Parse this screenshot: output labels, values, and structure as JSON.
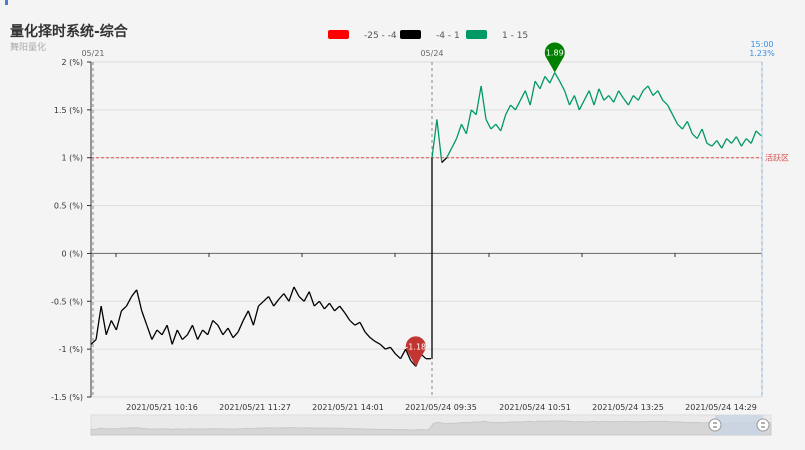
{
  "header": {
    "title": "量化择时系统-综合",
    "subtitle": "舞阳量化"
  },
  "chart_data": {
    "type": "line",
    "title": "量化择时系统-综合",
    "subtitle": "舞阳量化",
    "ylabel": "",
    "ylim": [
      -1.5,
      2
    ],
    "yticks": [
      "2 (%)",
      "1.5 (%)",
      "1 (%)",
      "0.5 (%)",
      "0 (%)",
      "-0.5 (%)",
      "-1 (%)",
      "-1.5 (%)"
    ],
    "ytick_values": [
      2,
      1.5,
      1,
      0.5,
      0,
      -0.5,
      -1,
      -1.5
    ],
    "xticks": [
      "2021/05/21 10:16",
      "2021/05/21 11:27",
      "2021/05/21 14:01",
      "2021/05/24 09:35",
      "2021/05/24 10:51",
      "2021/05/24 13:25",
      "2021/05/24 14:29"
    ],
    "day_labels": [
      "05/21",
      "05/24"
    ],
    "end_label": {
      "time": "15:00",
      "value": "1.23%"
    },
    "legend": [
      {
        "label": "-25 - -4",
        "color": "#ff0000"
      },
      {
        "label": "-4 - 1",
        "color": "#000000"
      },
      {
        "label": "1 - 15",
        "color": "#009966"
      }
    ],
    "reference_line": {
      "value": 1,
      "label": "活跃区",
      "color": "#d9534f"
    },
    "markers": [
      {
        "label": "1.89",
        "value": 1.89,
        "color": "#008000",
        "series": "day2"
      },
      {
        "label": "-1.18",
        "value": -1.18,
        "color": "#c23531",
        "series": "day1"
      }
    ],
    "series": [
      {
        "name": "05/21",
        "values": [
          -0.95,
          -0.9,
          -0.55,
          -0.85,
          -0.7,
          -0.8,
          -0.6,
          -0.55,
          -0.45,
          -0.38,
          -0.6,
          -0.75,
          -0.9,
          -0.8,
          -0.85,
          -0.75,
          -0.95,
          -0.8,
          -0.9,
          -0.85,
          -0.75,
          -0.9,
          -0.8,
          -0.85,
          -0.7,
          -0.75,
          -0.85,
          -0.78,
          -0.88,
          -0.82,
          -0.7,
          -0.6,
          -0.75,
          -0.55,
          -0.5,
          -0.45,
          -0.55,
          -0.48,
          -0.42,
          -0.5,
          -0.35,
          -0.45,
          -0.5,
          -0.4,
          -0.55,
          -0.5,
          -0.58,
          -0.52,
          -0.6,
          -0.55,
          -0.62,
          -0.7,
          -0.75,
          -0.72,
          -0.82,
          -0.88,
          -0.92,
          -0.95,
          -1.0,
          -0.98,
          -1.05,
          -1.1,
          -1.0,
          -1.12,
          -1.18,
          -1.05,
          -1.1,
          -1.1
        ]
      },
      {
        "name": "05/24",
        "values": [
          1.0,
          1.4,
          0.95,
          1.0,
          1.1,
          1.2,
          1.35,
          1.25,
          1.5,
          1.45,
          1.75,
          1.4,
          1.3,
          1.35,
          1.28,
          1.45,
          1.55,
          1.5,
          1.6,
          1.7,
          1.55,
          1.8,
          1.72,
          1.85,
          1.78,
          1.89,
          1.8,
          1.7,
          1.55,
          1.65,
          1.5,
          1.6,
          1.7,
          1.55,
          1.72,
          1.6,
          1.65,
          1.58,
          1.7,
          1.62,
          1.55,
          1.65,
          1.6,
          1.7,
          1.75,
          1.65,
          1.7,
          1.6,
          1.55,
          1.45,
          1.35,
          1.3,
          1.38,
          1.25,
          1.2,
          1.3,
          1.15,
          1.12,
          1.18,
          1.1,
          1.2,
          1.15,
          1.22,
          1.12,
          1.2,
          1.15,
          1.28,
          1.23
        ]
      }
    ]
  }
}
